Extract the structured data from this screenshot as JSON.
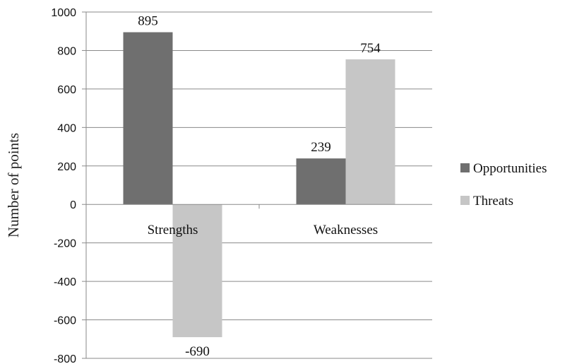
{
  "chart_data": {
    "type": "bar",
    "categories": [
      "Strengths",
      "Weaknesses"
    ],
    "series": [
      {
        "name": "Opportunities",
        "values": [
          895,
          239
        ],
        "color": "#6f6f6f"
      },
      {
        "name": "Threats",
        "values": [
          -690,
          754
        ],
        "color": "#c6c6c6"
      }
    ],
    "data_labels": [
      "895",
      "-690",
      "239",
      "754"
    ],
    "yticks": [
      "1000",
      "800",
      "600",
      "400",
      "200",
      "0",
      "-200",
      "-400",
      "-600",
      "-800"
    ],
    "ylabel": "Number of points",
    "xlabel": "",
    "title": "",
    "ylim": [
      -800,
      1000
    ],
    "grid": true,
    "legend_position": "right"
  }
}
